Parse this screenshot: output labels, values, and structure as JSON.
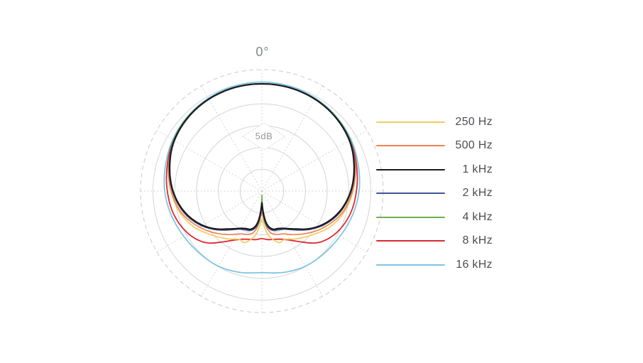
{
  "labels": {
    "zero_deg": "0°",
    "five_db": "5dB"
  },
  "legend": {
    "items": [
      {
        "label": "250 Hz",
        "color": "#F2CB63"
      },
      {
        "label": "500 Hz",
        "color": "#F0824D"
      },
      {
        "label": "1 kHz",
        "color": "#1A1A1E"
      },
      {
        "label": "2 kHz",
        "color": "#41549A"
      },
      {
        "label": "4 kHz",
        "color": "#6FAD4F"
      },
      {
        "label": "8 kHz",
        "color": "#DC2A2E"
      },
      {
        "label": "16 kHz",
        "color": "#7FC6E4"
      }
    ]
  },
  "chart_data": {
    "type": "line",
    "subtype": "polar-pattern",
    "title": "0°",
    "radial_scale_label": "5dB",
    "db_per_ring": 5,
    "rings_db": [
      0,
      5,
      10,
      15,
      20
    ],
    "full_scale_db": 25,
    "outer_boundary": "dashed",
    "angle_tick_step_deg": 30,
    "angle_reference": "0 degrees at top, pattern mirrored left-right",
    "legend_position": "right",
    "grid": true,
    "series": [
      {
        "name": "250 Hz",
        "color": "#F2CB63",
        "attenuation_db_by_angle": [
          [
            0,
            0.4
          ],
          [
            20,
            0.5
          ],
          [
            40,
            0.9
          ],
          [
            60,
            1.8
          ],
          [
            75,
            2.9
          ],
          [
            90,
            4.1
          ],
          [
            105,
            5.6
          ],
          [
            118,
            7.4
          ],
          [
            128,
            9.2
          ],
          [
            138,
            10.7
          ],
          [
            148,
            12.0
          ],
          [
            155,
            12.8
          ],
          [
            161,
            12.5
          ],
          [
            167,
            13.6
          ],
          [
            172,
            14.9
          ],
          [
            176,
            16.7
          ],
          [
            180,
            18.5
          ]
        ]
      },
      {
        "name": "500 Hz",
        "color": "#F0824D",
        "attenuation_db_by_angle": [
          [
            0,
            0.4
          ],
          [
            20,
            0.5
          ],
          [
            40,
            0.9
          ],
          [
            60,
            1.8
          ],
          [
            75,
            2.8
          ],
          [
            90,
            4.2
          ],
          [
            105,
            5.9
          ],
          [
            118,
            8.1
          ],
          [
            128,
            9.9
          ],
          [
            138,
            11.7
          ],
          [
            148,
            13.3
          ],
          [
            154,
            14.1
          ],
          [
            160,
            14.4
          ],
          [
            166,
            14.9
          ],
          [
            171,
            16.0
          ],
          [
            175,
            17.7
          ],
          [
            180,
            20.1
          ]
        ]
      },
      {
        "name": "1 kHz",
        "color": "#1A1A1E",
        "attenuation_db_by_angle": [
          [
            0,
            0.4
          ],
          [
            20,
            0.5
          ],
          [
            40,
            0.9
          ],
          [
            60,
            1.8
          ],
          [
            75,
            3.1
          ],
          [
            90,
            4.6
          ],
          [
            105,
            6.6
          ],
          [
            118,
            8.9
          ],
          [
            128,
            11.0
          ],
          [
            138,
            13.3
          ],
          [
            148,
            14.9
          ],
          [
            156,
            15.6
          ],
          [
            164,
            15.9
          ],
          [
            170,
            16.9
          ],
          [
            174,
            18.5
          ],
          [
            177,
            20.5
          ],
          [
            180,
            22.3
          ]
        ]
      },
      {
        "name": "2 kHz",
        "color": "#41549A",
        "attenuation_db_by_angle": [
          [
            0,
            0.4
          ],
          [
            20,
            0.5
          ],
          [
            40,
            0.9
          ],
          [
            60,
            1.7
          ],
          [
            75,
            3.0
          ],
          [
            90,
            4.5
          ],
          [
            105,
            6.4
          ],
          [
            118,
            8.7
          ],
          [
            128,
            10.8
          ],
          [
            138,
            13.0
          ],
          [
            148,
            14.7
          ],
          [
            156,
            15.3
          ],
          [
            164,
            15.6
          ],
          [
            170,
            16.5
          ],
          [
            174,
            18.0
          ],
          [
            177,
            20.0
          ],
          [
            180,
            21.8
          ]
        ]
      },
      {
        "name": "4 kHz",
        "color": "#6FAD4F",
        "attenuation_db_by_angle": [
          [
            0,
            0.4
          ],
          [
            20,
            0.5
          ],
          [
            40,
            0.8
          ],
          [
            60,
            1.6
          ],
          [
            75,
            3.0
          ],
          [
            90,
            4.6
          ],
          [
            105,
            6.5
          ],
          [
            118,
            8.8
          ],
          [
            128,
            10.9
          ],
          [
            138,
            13.2
          ],
          [
            148,
            14.8
          ],
          [
            156,
            15.4
          ],
          [
            164,
            15.7
          ],
          [
            170,
            16.4
          ],
          [
            174,
            17.5
          ],
          [
            176,
            19.1
          ],
          [
            178,
            21.3
          ],
          [
            180,
            24.1
          ]
        ]
      },
      {
        "name": "8 kHz",
        "color": "#DC2A2E",
        "attenuation_db_by_angle": [
          [
            0,
            0.4
          ],
          [
            20,
            0.5
          ],
          [
            40,
            0.9
          ],
          [
            60,
            1.6
          ],
          [
            75,
            2.5
          ],
          [
            90,
            3.3
          ],
          [
            105,
            4.1
          ],
          [
            120,
            5.5
          ],
          [
            132,
            7.4
          ],
          [
            142,
            10.2
          ],
          [
            150,
            12.0
          ],
          [
            158,
            13.1
          ],
          [
            166,
            13.6
          ],
          [
            173,
            13.8
          ],
          [
            180,
            14.1
          ]
        ]
      },
      {
        "name": "16 kHz",
        "color": "#7FC6E4",
        "attenuation_db_by_angle": [
          [
            0,
            0.0
          ],
          [
            20,
            0.2
          ],
          [
            40,
            0.7
          ],
          [
            60,
            1.4
          ],
          [
            75,
            2.1
          ],
          [
            90,
            2.7
          ],
          [
            105,
            3.5
          ],
          [
            120,
            4.3
          ],
          [
            135,
            4.8
          ],
          [
            150,
            5.1
          ],
          [
            165,
            5.7
          ],
          [
            180,
            6.3
          ]
        ]
      }
    ]
  }
}
